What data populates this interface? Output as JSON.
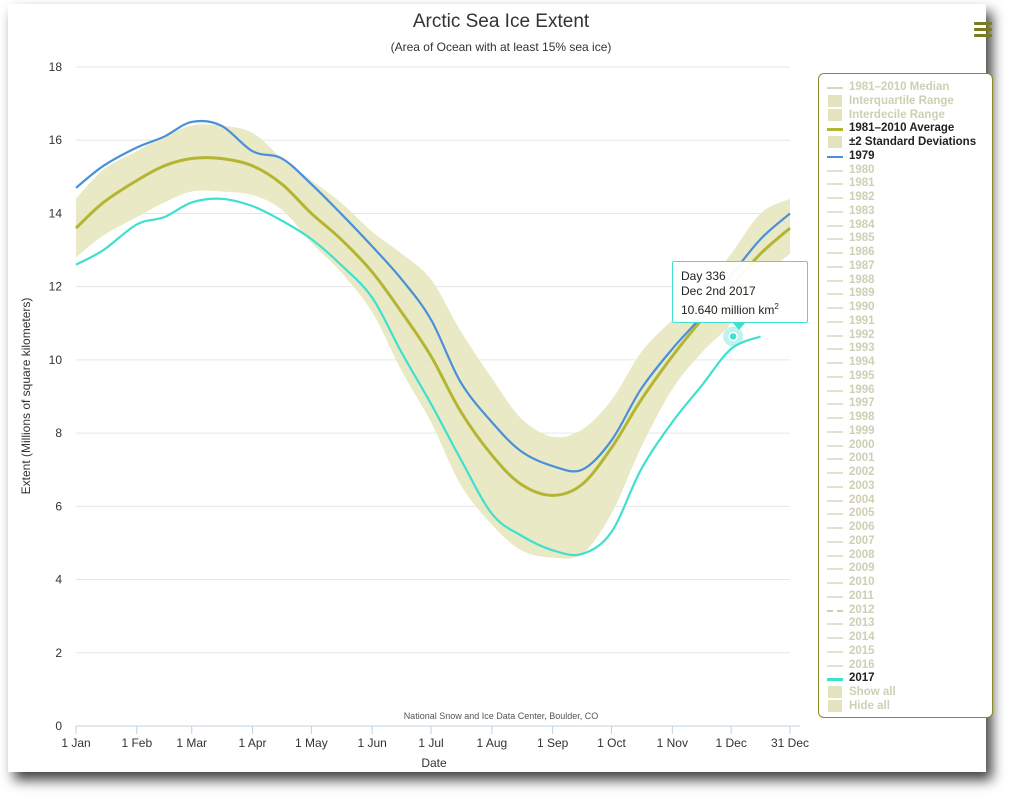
{
  "chart_data": {
    "type": "line",
    "title": "Arctic Sea Ice Extent",
    "subtitle": "(Area of Ocean with at least 15% sea ice)",
    "xlabel": "Date",
    "ylabel": "Extent (Millions of square kilometers)",
    "ylim": [
      0,
      18
    ],
    "yticks": [
      "0",
      "2",
      "4",
      "6",
      "8",
      "10",
      "12",
      "14",
      "16",
      "18"
    ],
    "xlim": [
      1,
      365
    ],
    "xticks": [
      {
        "label": "1 Jan",
        "day": 1
      },
      {
        "label": "1 Feb",
        "day": 32
      },
      {
        "label": "1 Mar",
        "day": 60
      },
      {
        "label": "1 Apr",
        "day": 91
      },
      {
        "label": "1 May",
        "day": 121
      },
      {
        "label": "1 Jun",
        "day": 152
      },
      {
        "label": "1 Jul",
        "day": 182
      },
      {
        "label": "1 Aug",
        "day": 213
      },
      {
        "label": "1 Sep",
        "day": 244
      },
      {
        "label": "1 Oct",
        "day": 274
      },
      {
        "label": "1 Nov",
        "day": 305
      },
      {
        "label": "1 Dec",
        "day": 335
      },
      {
        "label": "31 Dec",
        "day": 365
      }
    ],
    "grid": "horizontal",
    "credit": "National Snow and Ice Data Center, Boulder, CO",
    "legend_position": "right",
    "x": [
      1,
      15,
      32,
      46,
      60,
      75,
      91,
      106,
      121,
      136,
      152,
      167,
      182,
      197,
      213,
      228,
      244,
      259,
      274,
      289,
      305,
      320,
      335,
      350,
      365
    ],
    "series": [
      {
        "name": "±2 Standard Deviations",
        "type": "band",
        "color": "#e8e8c2",
        "low": [
          12.8,
          13.4,
          13.9,
          14.3,
          14.6,
          14.6,
          14.5,
          14.1,
          13.2,
          12.4,
          11.3,
          9.7,
          8.3,
          6.6,
          5.5,
          4.8,
          4.6,
          4.7,
          5.8,
          7.6,
          9.2,
          10.2,
          11.0,
          12.2,
          12.9
        ],
        "high": [
          14.4,
          15.2,
          15.7,
          16.1,
          16.4,
          16.4,
          16.2,
          15.5,
          14.9,
          14.3,
          13.5,
          12.9,
          12.2,
          10.8,
          9.5,
          8.4,
          7.9,
          8.1,
          8.9,
          10.2,
          11.1,
          11.9,
          12.9,
          14.0,
          14.4
        ]
      },
      {
        "name": "1981-2010 Average",
        "type": "line",
        "color": "#b5b534",
        "y": [
          13.6,
          14.3,
          14.9,
          15.3,
          15.5,
          15.5,
          15.3,
          14.8,
          14.0,
          13.3,
          12.4,
          11.3,
          10.1,
          8.6,
          7.4,
          6.6,
          6.3,
          6.6,
          7.6,
          8.9,
          10.1,
          11.1,
          12.0,
          12.9,
          13.6
        ]
      },
      {
        "name": "1979",
        "type": "line",
        "color": "#4a90d9",
        "y": [
          14.7,
          15.3,
          15.8,
          16.1,
          16.5,
          16.4,
          15.7,
          15.5,
          14.8,
          14.0,
          13.1,
          12.2,
          11.1,
          9.4,
          8.3,
          7.5,
          7.1,
          7.0,
          7.8,
          9.2,
          10.3,
          11.2,
          12.3,
          13.3,
          14.0
        ]
      },
      {
        "name": "2017",
        "type": "line",
        "color": "#3fe0d0",
        "y": [
          12.6,
          13.0,
          13.7,
          13.9,
          14.3,
          14.4,
          14.2,
          13.8,
          13.3,
          12.6,
          11.7,
          10.2,
          8.8,
          7.3,
          5.8,
          5.2,
          4.8,
          4.7,
          5.3,
          7.0,
          8.3,
          9.3,
          10.3,
          10.64,
          null
        ]
      }
    ],
    "tooltip": {
      "day_label": "Day 336",
      "date_label": "Dec 2nd 2017",
      "value_label": "10.640 million km",
      "value_sup": "2",
      "day": 336,
      "value": 10.64
    }
  },
  "legend": {
    "items": [
      {
        "label": "1981–2010 Median",
        "symbol": "line",
        "color": "#d8d8c0",
        "active": false
      },
      {
        "label": "Interquartile Range",
        "symbol": "box",
        "color": "#e3e3c0",
        "active": false
      },
      {
        "label": "Interdecile Range",
        "symbol": "box",
        "color": "#e3e3c0",
        "active": false
      },
      {
        "label": "1981–2010 Average",
        "symbol": "line",
        "color": "#b5b534",
        "active": true
      },
      {
        "label": "±2 Standard Deviations",
        "symbol": "box",
        "color": "#e3e3c0",
        "active": true
      },
      {
        "label": "1979",
        "symbol": "line",
        "color": "#4a90d9",
        "active": true
      },
      {
        "label": "1980",
        "symbol": "line",
        "color": "#e2e2d0",
        "active": false
      },
      {
        "label": "1981",
        "symbol": "line",
        "color": "#e2e2d0",
        "active": false
      },
      {
        "label": "1982",
        "symbol": "line",
        "color": "#e2e2d0",
        "active": false
      },
      {
        "label": "1983",
        "symbol": "line",
        "color": "#e2e2d0",
        "active": false
      },
      {
        "label": "1984",
        "symbol": "line",
        "color": "#e2e2d0",
        "active": false
      },
      {
        "label": "1985",
        "symbol": "line",
        "color": "#e2e2d0",
        "active": false
      },
      {
        "label": "1986",
        "symbol": "line",
        "color": "#e2e2d0",
        "active": false
      },
      {
        "label": "1987",
        "symbol": "line",
        "color": "#e2e2d0",
        "active": false
      },
      {
        "label": "1988",
        "symbol": "line",
        "color": "#e2e2d0",
        "active": false
      },
      {
        "label": "1989",
        "symbol": "line",
        "color": "#e2e2d0",
        "active": false
      },
      {
        "label": "1990",
        "symbol": "line",
        "color": "#e2e2d0",
        "active": false
      },
      {
        "label": "1991",
        "symbol": "line",
        "color": "#e2e2d0",
        "active": false
      },
      {
        "label": "1992",
        "symbol": "line",
        "color": "#e2e2d0",
        "active": false
      },
      {
        "label": "1993",
        "symbol": "line",
        "color": "#e2e2d0",
        "active": false
      },
      {
        "label": "1994",
        "symbol": "line",
        "color": "#e2e2d0",
        "active": false
      },
      {
        "label": "1995",
        "symbol": "line",
        "color": "#e2e2d0",
        "active": false
      },
      {
        "label": "1996",
        "symbol": "line",
        "color": "#e2e2d0",
        "active": false
      },
      {
        "label": "1997",
        "symbol": "line",
        "color": "#e2e2d0",
        "active": false
      },
      {
        "label": "1998",
        "symbol": "line",
        "color": "#e2e2d0",
        "active": false
      },
      {
        "label": "1999",
        "symbol": "line",
        "color": "#e2e2d0",
        "active": false
      },
      {
        "label": "2000",
        "symbol": "line",
        "color": "#e2e2d0",
        "active": false
      },
      {
        "label": "2001",
        "symbol": "line",
        "color": "#e2e2d0",
        "active": false
      },
      {
        "label": "2002",
        "symbol": "line",
        "color": "#e2e2d0",
        "active": false
      },
      {
        "label": "2003",
        "symbol": "line",
        "color": "#e2e2d0",
        "active": false
      },
      {
        "label": "2004",
        "symbol": "line",
        "color": "#e2e2d0",
        "active": false
      },
      {
        "label": "2005",
        "symbol": "line",
        "color": "#e2e2d0",
        "active": false
      },
      {
        "label": "2006",
        "symbol": "line",
        "color": "#e2e2d0",
        "active": false
      },
      {
        "label": "2007",
        "symbol": "line",
        "color": "#e2e2d0",
        "active": false
      },
      {
        "label": "2008",
        "symbol": "line",
        "color": "#e2e2d0",
        "active": false
      },
      {
        "label": "2009",
        "symbol": "line",
        "color": "#e2e2d0",
        "active": false
      },
      {
        "label": "2010",
        "symbol": "line",
        "color": "#e2e2d0",
        "active": false
      },
      {
        "label": "2011",
        "symbol": "line",
        "color": "#e2e2d0",
        "active": false
      },
      {
        "label": "2012",
        "symbol": "dash",
        "color": "#cfcfb4",
        "active": false
      },
      {
        "label": "2013",
        "symbol": "line",
        "color": "#e2e2d0",
        "active": false
      },
      {
        "label": "2014",
        "symbol": "line",
        "color": "#e2e2d0",
        "active": false
      },
      {
        "label": "2015",
        "symbol": "line",
        "color": "#e2e2d0",
        "active": false
      },
      {
        "label": "2016",
        "symbol": "line",
        "color": "#e2e2d0",
        "active": false
      },
      {
        "label": "2017",
        "symbol": "line",
        "color": "#3fe0d0",
        "active": true
      },
      {
        "label": "Show all",
        "symbol": "box",
        "color": "#e3e3c0",
        "active": false
      },
      {
        "label": "Hide all",
        "symbol": "box",
        "color": "#e3e3c0",
        "active": false
      }
    ]
  },
  "menu_icon": "hamburger-menu-icon"
}
